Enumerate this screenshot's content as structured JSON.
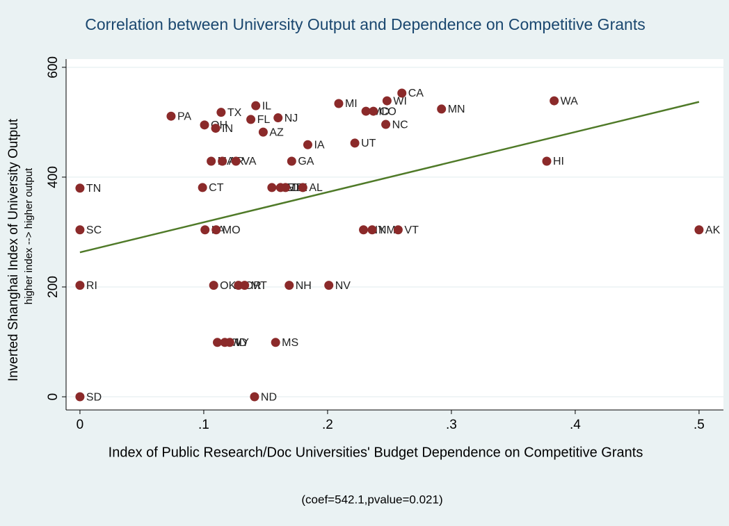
{
  "chart_data": {
    "type": "scatter",
    "title": "Correlation between University Output and Dependence on Competitive Grants",
    "xlabel": "Index of Public Research/Doc Universities' Budget Dependence on Competitive Grants",
    "ylabel": "Inverted Shanghai Index of University Output",
    "ylabel2": "higher index --> higher output",
    "note": "(coef=542.1,pvalue=0.021)",
    "xlim": [
      -0.0112,
      0.5197
    ],
    "ylim": [
      -24,
      615
    ],
    "xticks": [
      0,
      {
        "value": 0.1,
        "label": ".1"
      },
      {
        "value": 0.2,
        "label": ".2"
      },
      {
        "value": 0.3,
        "label": ".3"
      },
      {
        "value": 0.4,
        "label": ".4"
      },
      {
        "value": 0.5,
        "label": ".5"
      }
    ],
    "yticks": [
      0,
      200,
      400,
      600
    ],
    "grid": true,
    "series": [
      {
        "color": "#8b2a2a",
        "labels": [
          "PA",
          "TX",
          "IL",
          "FL",
          "NJ",
          "OH",
          "IN",
          "AZ",
          "MI",
          "WI",
          "CA",
          "MD",
          "CO",
          "MN",
          "NC",
          "WA",
          "UT",
          "IA",
          "MA",
          "AR",
          "VA",
          "GA",
          "HI",
          "TN",
          "CT",
          "NE",
          "ME",
          "DE",
          "AL",
          "SC",
          "LA",
          "MO",
          "NY",
          "NM",
          "VT",
          "AK",
          "RI",
          "OK",
          "OR",
          "MT",
          "NH",
          "NV",
          "WV",
          "WY",
          "ID",
          "MS",
          "SD",
          "ND"
        ],
        "x": [
          0.0736,
          0.114,
          0.142,
          0.138,
          0.16,
          0.1006,
          0.1096,
          0.148,
          0.209,
          0.248,
          0.26,
          0.231,
          0.237,
          0.292,
          0.247,
          0.383,
          0.222,
          0.184,
          0.106,
          0.115,
          0.126,
          0.171,
          0.377,
          0,
          0.099,
          0.155,
          0.162,
          0.166,
          0.18,
          0,
          0.101,
          0.11,
          0.229,
          0.236,
          0.257,
          0.5,
          0,
          0.108,
          0.128,
          0.133,
          0.169,
          0.201,
          0.111,
          0.117,
          0.121,
          0.158,
          0,
          0.141
        ],
        "values": [
          511,
          518,
          530,
          505,
          508,
          495,
          489,
          482,
          534,
          539,
          553,
          520,
          520,
          524,
          496,
          539,
          462,
          459,
          429,
          429,
          429,
          429,
          429,
          380,
          381,
          381,
          381,
          381,
          381,
          304,
          304,
          304,
          304,
          304,
          304,
          304,
          203,
          203,
          203,
          203,
          203,
          203,
          99,
          99,
          99,
          99,
          0,
          0
        ]
      }
    ],
    "fit": {
      "color": "#4f7a28",
      "x": [
        0,
        0.5
      ],
      "y": [
        263,
        537
      ]
    }
  }
}
